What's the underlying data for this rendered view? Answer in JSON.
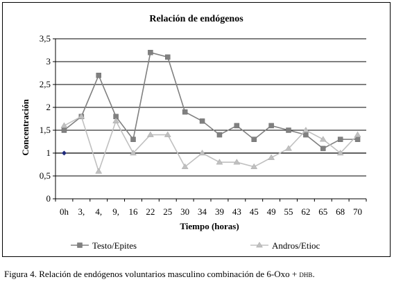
{
  "chart_data": {
    "type": "line",
    "title": "Relación de endógenos",
    "xlabel": "Tiempo (horas)",
    "ylabel": "Concentración",
    "categories": [
      "0h",
      "3,",
      "4,",
      "9,",
      "16",
      "22",
      "25",
      "30",
      "34",
      "39",
      "43",
      "45",
      "49",
      "55",
      "62",
      "65",
      "68",
      "70"
    ],
    "ylim": [
      0,
      3.5
    ],
    "yticks": [
      0,
      0.5,
      1,
      1.5,
      2,
      2.5,
      3,
      3.5
    ],
    "ytick_labels": [
      "0",
      "0,5",
      "1",
      "1,5",
      "2",
      "2,5",
      "3",
      "3,5"
    ],
    "grid": true,
    "legend": "bottom",
    "reference_line": {
      "value": 1,
      "marker_color": "#1f2a7a"
    },
    "series": [
      {
        "name": "Testo/Epites",
        "color": "#808080",
        "marker": "square",
        "values": [
          1.5,
          1.8,
          2.7,
          1.8,
          1.3,
          3.2,
          3.1,
          1.9,
          1.7,
          1.4,
          1.6,
          1.3,
          1.6,
          1.5,
          1.4,
          1.1,
          1.3,
          1.3
        ]
      },
      {
        "name": "Andros/Etioc",
        "color": "#c0c0c0",
        "marker": "triangle",
        "values": [
          1.6,
          1.8,
          0.6,
          1.7,
          1.0,
          1.4,
          1.4,
          0.7,
          1.0,
          0.8,
          0.8,
          0.7,
          0.9,
          1.1,
          1.5,
          1.3,
          1.0,
          1.4
        ]
      }
    ]
  },
  "caption": {
    "text": "Figura 4. Relación de endógenos voluntarios masculino combinación de 6-Oxo + ",
    "abbr": "dhb",
    "end": "."
  }
}
